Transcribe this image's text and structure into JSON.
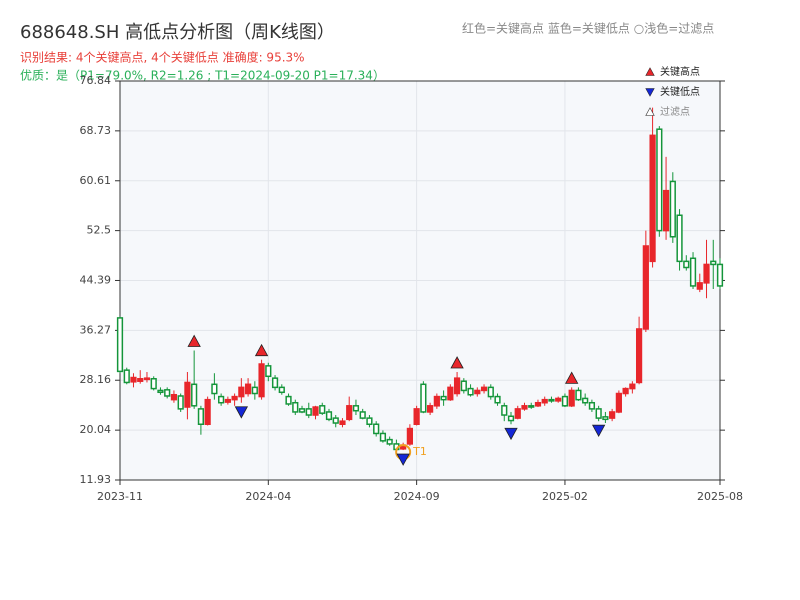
{
  "chart_data": {
    "type": "candlestick",
    "title": "688648.SH 高低点分析图（周K线图）",
    "result_line": "识别结果: 4个关键高点, 4个关键低点  准确度: 95.3%",
    "quality_line": "优质：是（P1=79.0%, R2=1.26 ; T1=2024-09-20 P1=17.34）",
    "header_legend": "红色=关键高点    蓝色=关键低点  ○浅色=过滤点",
    "open": [
      38.3,
      29.8,
      27.9,
      28.0,
      28.3,
      28.4,
      26.5,
      26.6,
      25.0,
      25.6,
      23.8,
      27.5,
      23.5,
      21.0,
      27.5,
      25.5,
      24.6,
      25.0,
      25.5,
      26.0,
      27.0,
      25.5,
      30.5,
      28.5,
      27.0,
      25.5,
      24.5,
      23.5,
      23.5,
      22.5,
      24.0,
      23.0,
      22.0,
      21.0,
      21.8,
      24.0,
      23.0,
      22.0,
      21.0,
      19.5,
      18.5,
      17.8,
      17.0,
      17.8,
      21.0,
      27.5,
      23.0,
      24.0,
      25.5,
      25.0,
      26.0,
      28.0,
      26.8,
      26.0,
      26.5,
      27.0,
      25.5,
      24.0,
      22.3,
      22.0,
      23.5,
      24.0,
      24.0,
      24.5,
      25.0,
      24.8,
      25.5,
      24.0,
      26.5,
      25.2,
      24.5,
      23.5,
      22.2,
      22.0,
      23.0,
      26.0,
      26.8,
      27.8,
      36.5,
      47.5,
      69.0,
      52.5,
      60.5,
      55.0,
      47.5,
      48.0,
      43.0,
      44.0,
      47.5,
      47.0
    ],
    "high": [
      38.5,
      30.2,
      29.3,
      29.8,
      29.5,
      28.8,
      27.0,
      27.0,
      26.5,
      26.0,
      29.5,
      33.0,
      24.0,
      25.5,
      29.3,
      26.0,
      25.5,
      26.0,
      28.5,
      28.5,
      28.0,
      31.5,
      31.0,
      29.0,
      27.5,
      26.0,
      25.0,
      24.0,
      24.5,
      24.0,
      24.5,
      23.5,
      22.5,
      22.0,
      25.5,
      25.0,
      23.5,
      22.5,
      21.5,
      20.0,
      19.0,
      18.5,
      18.0,
      21.0,
      24.0,
      28.0,
      24.5,
      26.0,
      26.5,
      27.5,
      29.5,
      28.5,
      27.5,
      27.0,
      27.5,
      27.5,
      26.0,
      24.5,
      23.0,
      24.0,
      24.5,
      24.5,
      25.0,
      25.5,
      25.5,
      25.5,
      26.0,
      27.0,
      27.0,
      26.0,
      25.0,
      24.0,
      23.0,
      23.5,
      26.5,
      27.0,
      28.0,
      38.5,
      52.5,
      72.5,
      69.5,
      64.5,
      62.0,
      56.0,
      48.5,
      49.0,
      45.5,
      51.0,
      51.0,
      48.0
    ],
    "low": [
      29.3,
      27.5,
      27.0,
      27.6,
      27.8,
      26.5,
      25.8,
      25.2,
      24.5,
      23.0,
      21.8,
      23.5,
      19.3,
      20.8,
      25.0,
      24.0,
      24.2,
      24.0,
      24.5,
      25.5,
      25.0,
      25.0,
      28.0,
      26.5,
      25.8,
      24.0,
      22.5,
      22.8,
      22.0,
      21.8,
      22.5,
      21.5,
      20.5,
      20.5,
      21.5,
      22.5,
      21.8,
      20.5,
      19.0,
      18.0,
      17.5,
      16.5,
      16.8,
      17.5,
      20.8,
      22.8,
      22.5,
      23.5,
      24.0,
      24.8,
      25.5,
      26.0,
      25.5,
      25.5,
      26.0,
      25.0,
      24.0,
      21.5,
      21.0,
      21.8,
      23.2,
      23.5,
      23.8,
      24.0,
      24.5,
      24.5,
      23.8,
      23.8,
      24.8,
      24.0,
      23.0,
      21.5,
      21.2,
      21.5,
      22.8,
      25.5,
      26.0,
      27.5,
      36.0,
      46.5,
      51.5,
      51.0,
      50.5,
      46.0,
      46.0,
      43.0,
      42.5,
      41.5,
      43.0,
      43.0
    ],
    "close": [
      29.6,
      27.8,
      28.6,
      28.4,
      28.5,
      26.8,
      26.2,
      25.6,
      25.8,
      23.5,
      27.8,
      24.0,
      21.0,
      25.0,
      26.0,
      24.5,
      25.0,
      25.5,
      27.0,
      27.5,
      26.0,
      30.8,
      28.8,
      27.0,
      26.2,
      24.3,
      23.0,
      23.0,
      22.5,
      23.8,
      22.8,
      21.8,
      21.2,
      21.5,
      24.0,
      23.2,
      22.0,
      21.0,
      19.5,
      18.3,
      17.8,
      16.9,
      17.6,
      20.3,
      23.5,
      23.0,
      24.0,
      25.5,
      25.0,
      27.0,
      28.5,
      26.5,
      25.8,
      26.5,
      27.0,
      25.5,
      24.5,
      22.5,
      21.6,
      23.5,
      24.0,
      23.8,
      24.5,
      25.0,
      24.8,
      25.2,
      24.0,
      26.5,
      25.0,
      24.5,
      23.5,
      22.0,
      21.8,
      23.0,
      26.0,
      26.8,
      27.5,
      36.5,
      50.0,
      68.0,
      52.5,
      59.0,
      51.5,
      47.5,
      46.5,
      43.5,
      44.0,
      47.0,
      47.0,
      43.5
    ],
    "up_color": "#e8262b",
    "down_color": "#14953a",
    "key_highs": [
      11,
      21,
      50,
      67
    ],
    "key_lows": [
      18,
      42,
      58,
      71
    ],
    "high_color": "#e8262b",
    "low_color": "#1427d6",
    "annotations": [
      {
        "label": "T1",
        "x": 42,
        "color": "#f0a020"
      }
    ],
    "legend": [
      {
        "name": "关键高点",
        "color": "#e8262b",
        "shape": "up"
      },
      {
        "name": "关键低点",
        "color": "#1427d6",
        "shape": "down"
      },
      {
        "name": "过滤点",
        "color": "#ffffff",
        "shape": "up"
      }
    ],
    "xlim": [
      0,
      89
    ],
    "xticks": [
      {
        "value": 0,
        "label": "2023-11"
      },
      {
        "value": 22,
        "label": "2024-04"
      },
      {
        "value": 44,
        "label": "2024-09"
      },
      {
        "value": 66,
        "label": "2025-02"
      },
      {
        "value": 89,
        "label": "2025-08"
      }
    ],
    "ylim": [
      11.93,
      76.84
    ],
    "yticks": [
      11.93,
      20.04,
      28.16,
      36.27,
      44.39,
      52.5,
      60.61,
      68.73,
      76.84
    ],
    "grid": true
  }
}
